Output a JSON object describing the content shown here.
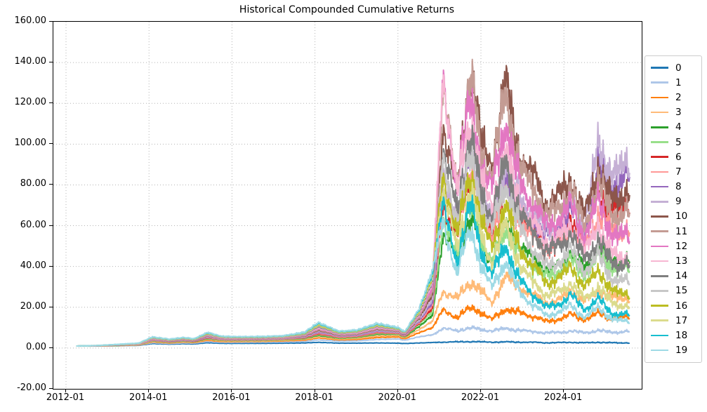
{
  "chart_data": {
    "type": "line",
    "title": "Historical Compounded Cumulative Returns",
    "xlabel": "",
    "ylabel": "",
    "grid": "dotted, both axes",
    "legend_position": "outside right",
    "ylim": [
      -20,
      160
    ],
    "xlim_years": [
      2011.695,
      2025.875
    ],
    "y_tick_labels": [
      "160.00",
      "140.00",
      "120.00",
      "100.00",
      "80.00",
      "60.00",
      "40.00",
      "20.00",
      "0.00",
      "-20.00"
    ],
    "y_tick_values": [
      160,
      140,
      120,
      100,
      80,
      60,
      40,
      20,
      0,
      -20
    ],
    "x_tick_labels": [
      "2012-01",
      "2014-01",
      "2016-01",
      "2018-01",
      "2020-01",
      "2022-01",
      "2024-01"
    ],
    "x_keypoint_dates": [
      "2012-04",
      "2012-10",
      "2013-04",
      "2013-10",
      "2014-02",
      "2014-07",
      "2014-11",
      "2015-02",
      "2015-06",
      "2015-10",
      "2016-04",
      "2016-10",
      "2017-04",
      "2017-10",
      "2018-02",
      "2018-08",
      "2019-01",
      "2019-07",
      "2020-01",
      "2020-03",
      "2020-07",
      "2020-11",
      "2021-02",
      "2021-06",
      "2021-10",
      "2022-01",
      "2022-04",
      "2022-08",
      "2022-12",
      "2023-04",
      "2023-08",
      "2023-12",
      "2024-03",
      "2024-07",
      "2024-11",
      "2025-03",
      "2025-08"
    ],
    "series": [
      {
        "name": "0",
        "color": "#1f77b4",
        "values": [
          1.0,
          1.0,
          1.1,
          1.3,
          2.2,
          1.9,
          2.1,
          2.0,
          2.6,
          2.3,
          2.3,
          2.3,
          2.4,
          2.5,
          2.8,
          2.4,
          2.4,
          2.5,
          2.4,
          2.2,
          2.5,
          2.7,
          2.9,
          3.0,
          3.2,
          3.0,
          2.9,
          3.0,
          2.9,
          2.8,
          2.6,
          2.7,
          2.8,
          2.6,
          2.8,
          2.6,
          2.5
        ]
      },
      {
        "name": "1",
        "color": "#aec7e8",
        "values": [
          1.0,
          1.0,
          1.1,
          1.4,
          2.6,
          2.2,
          2.5,
          2.4,
          3.2,
          2.8,
          2.8,
          2.9,
          3.0,
          3.3,
          4.0,
          3.4,
          3.5,
          4.2,
          4.5,
          3.8,
          5.5,
          6.5,
          9.5,
          8.5,
          10.0,
          9.0,
          8.5,
          9.5,
          8.8,
          8.0,
          7.5,
          7.8,
          8.3,
          7.6,
          8.5,
          7.8,
          8.0
        ]
      },
      {
        "name": "2",
        "color": "#ff7f0e",
        "values": [
          1.0,
          1.0,
          1.2,
          1.5,
          3.0,
          2.5,
          2.9,
          2.7,
          3.8,
          3.2,
          3.2,
          3.3,
          3.5,
          3.9,
          5.0,
          4.0,
          4.2,
          5.2,
          5.5,
          4.5,
          7.5,
          10.0,
          18.5,
          15.0,
          20.0,
          17.5,
          14.0,
          19.0,
          17.5,
          15.5,
          13.0,
          14.5,
          16.5,
          14.0,
          17.0,
          14.5,
          15.0
        ]
      },
      {
        "name": "3",
        "color": "#ffbb78",
        "values": [
          1.0,
          1.0,
          1.2,
          1.6,
          3.2,
          2.7,
          3.1,
          2.9,
          4.2,
          3.5,
          3.4,
          3.5,
          3.8,
          4.3,
          5.5,
          4.4,
          4.7,
          6.0,
          6.2,
          5.0,
          9.0,
          13.0,
          28.0,
          24.0,
          33.0,
          28.0,
          22.0,
          35.0,
          30.0,
          26.0,
          22.0,
          24.0,
          28.0,
          23.0,
          28.0,
          25.0,
          24.0
        ]
      },
      {
        "name": "4",
        "color": "#2ca02c",
        "values": [
          1.0,
          1.1,
          1.3,
          1.7,
          3.5,
          2.9,
          3.4,
          3.1,
          4.6,
          3.8,
          3.7,
          3.8,
          4.1,
          4.7,
          6.2,
          4.8,
          5.2,
          6.8,
          6.8,
          5.4,
          10.5,
          16.0,
          55.0,
          45.0,
          65.0,
          52.0,
          42.0,
          60.0,
          50.0,
          44.0,
          38.0,
          41.0,
          47.0,
          39.0,
          48.0,
          43.0,
          42.0
        ]
      },
      {
        "name": "5",
        "color": "#98df8a",
        "values": [
          1.0,
          1.1,
          1.3,
          1.7,
          3.6,
          3.0,
          3.5,
          3.2,
          4.8,
          3.9,
          3.8,
          3.9,
          4.2,
          4.9,
          6.6,
          5.0,
          5.4,
          7.2,
          7.0,
          5.6,
          11.5,
          18.0,
          60.0,
          48.0,
          70.0,
          54.0,
          42.0,
          58.0,
          47.0,
          40.0,
          35.0,
          38.0,
          43.0,
          36.0,
          45.0,
          40.0,
          38.0
        ]
      },
      {
        "name": "6",
        "color": "#d62728",
        "values": [
          1.0,
          1.1,
          1.4,
          1.8,
          3.8,
          3.1,
          3.7,
          3.3,
          5.0,
          4.1,
          4.0,
          4.1,
          4.4,
          5.1,
          7.0,
          5.3,
          5.7,
          7.6,
          7.3,
          5.8,
          12.0,
          19.5,
          70.0,
          55.0,
          85.0,
          66.0,
          55.0,
          80.0,
          66.0,
          58.0,
          50.0,
          54.0,
          62.0,
          52.0,
          75.0,
          68.0,
          70.0
        ]
      },
      {
        "name": "7",
        "color": "#ff9896",
        "values": [
          1.0,
          1.1,
          1.4,
          1.8,
          3.9,
          3.2,
          3.8,
          3.4,
          5.2,
          4.2,
          4.1,
          4.2,
          4.5,
          5.3,
          7.4,
          5.5,
          5.9,
          7.9,
          7.5,
          6.0,
          12.5,
          21.0,
          75.0,
          58.0,
          90.0,
          68.0,
          55.0,
          78.0,
          63.0,
          54.0,
          48.0,
          51.0,
          58.0,
          49.0,
          65.0,
          58.0,
          57.0
        ]
      },
      {
        "name": "8",
        "color": "#9467bd",
        "values": [
          1.0,
          1.1,
          1.4,
          1.9,
          4.1,
          3.3,
          3.9,
          3.5,
          5.4,
          4.4,
          4.3,
          4.4,
          4.7,
          5.5,
          7.8,
          5.8,
          6.2,
          8.3,
          7.8,
          6.2,
          13.0,
          22.5,
          80.0,
          62.0,
          95.0,
          72.0,
          60.0,
          85.0,
          70.0,
          62.0,
          55.0,
          60.0,
          68.0,
          57.0,
          88.0,
          80.0,
          83.0
        ]
      },
      {
        "name": "9",
        "color": "#c5b0d5",
        "values": [
          1.0,
          1.1,
          1.5,
          1.9,
          4.2,
          3.4,
          4.0,
          3.6,
          5.6,
          4.5,
          4.4,
          4.5,
          4.8,
          5.7,
          8.2,
          6.0,
          6.5,
          8.7,
          8.0,
          6.4,
          13.5,
          24.0,
          85.0,
          65.0,
          100.0,
          76.0,
          63.0,
          90.0,
          74.0,
          65.0,
          58.0,
          63.0,
          72.0,
          60.0,
          100.0,
          85.0,
          90.0
        ]
      },
      {
        "name": "10",
        "color": "#8c564b",
        "values": [
          1.0,
          1.1,
          1.5,
          2.0,
          4.4,
          3.5,
          4.2,
          3.7,
          5.9,
          4.7,
          4.6,
          4.7,
          5.0,
          6.0,
          8.7,
          6.3,
          6.8,
          9.2,
          8.3,
          6.6,
          14.5,
          26.0,
          110.0,
          75.0,
          141.0,
          100.0,
          90.0,
          130.0,
          95.0,
          85.0,
          70.0,
          76.0,
          83.0,
          65.0,
          88.0,
          72.0,
          77.0
        ]
      },
      {
        "name": "11",
        "color": "#c49c94",
        "values": [
          1.0,
          1.1,
          1.5,
          2.0,
          4.5,
          3.6,
          4.3,
          3.8,
          6.1,
          4.8,
          4.7,
          4.8,
          5.1,
          6.2,
          9.1,
          6.5,
          7.0,
          9.5,
          8.5,
          6.8,
          15.0,
          28.0,
          125.0,
          80.0,
          135.0,
          95.0,
          85.0,
          124.0,
          90.0,
          78.0,
          65.0,
          70.0,
          78.0,
          60.0,
          80.0,
          66.0,
          65.0
        ]
      },
      {
        "name": "12",
        "color": "#e377c2",
        "values": [
          1.0,
          1.2,
          1.6,
          2.1,
          4.7,
          3.7,
          4.5,
          3.9,
          6.3,
          5.0,
          4.9,
          5.0,
          5.3,
          6.4,
          9.6,
          6.8,
          7.3,
          9.9,
          8.8,
          7.0,
          15.5,
          30.0,
          130.0,
          78.0,
          125.0,
          88.0,
          78.0,
          110.0,
          82.0,
          70.0,
          60.0,
          64.0,
          70.0,
          55.0,
          72.0,
          56.0,
          54.0
        ]
      },
      {
        "name": "13",
        "color": "#f7b6d2",
        "values": [
          1.0,
          1.2,
          1.6,
          2.1,
          4.8,
          3.8,
          4.6,
          4.0,
          6.5,
          5.1,
          5.0,
          5.1,
          5.4,
          6.6,
          10.0,
          7.0,
          7.5,
          10.2,
          9.0,
          7.2,
          16.0,
          32.0,
          135.0,
          75.0,
          115.0,
          82.0,
          70.0,
          95.0,
          72.0,
          60.0,
          52.0,
          55.0,
          60.0,
          47.0,
          60.0,
          46.0,
          43.0
        ]
      },
      {
        "name": "14",
        "color": "#7f7f7f",
        "values": [
          1.0,
          1.2,
          1.6,
          2.2,
          5.0,
          3.9,
          4.7,
          4.1,
          6.7,
          5.3,
          5.1,
          5.2,
          5.6,
          6.8,
          10.5,
          7.2,
          7.8,
          10.6,
          9.2,
          7.4,
          16.5,
          33.0,
          95.0,
          68.0,
          105.0,
          76.0,
          65.0,
          90.0,
          68.0,
          56.0,
          48.0,
          51.0,
          56.0,
          44.0,
          52.0,
          42.0,
          40.0
        ]
      },
      {
        "name": "15",
        "color": "#c7c7c7",
        "values": [
          1.0,
          1.2,
          1.7,
          2.2,
          5.1,
          4.0,
          4.8,
          4.2,
          6.9,
          5.4,
          5.2,
          5.3,
          5.7,
          7.0,
          11.0,
          7.4,
          8.0,
          10.9,
          9.4,
          7.6,
          17.0,
          34.0,
          90.0,
          62.0,
          95.0,
          70.0,
          58.0,
          80.0,
          60.0,
          48.0,
          40.0,
          43.0,
          48.0,
          38.0,
          45.0,
          34.0,
          32.0
        ]
      },
      {
        "name": "16",
        "color": "#bcbd22",
        "values": [
          1.0,
          1.2,
          1.7,
          2.3,
          5.2,
          4.1,
          4.9,
          4.3,
          7.1,
          5.5,
          5.3,
          5.4,
          5.8,
          7.2,
          11.4,
          7.6,
          8.2,
          11.2,
          9.6,
          7.7,
          17.5,
          35.0,
          85.0,
          55.0,
          88.0,
          62.0,
          50.0,
          70.0,
          50.0,
          40.0,
          32.0,
          35.0,
          40.0,
          30.0,
          38.0,
          28.0,
          26.0
        ]
      },
      {
        "name": "17",
        "color": "#dbdb8d",
        "values": [
          1.0,
          1.2,
          1.7,
          2.3,
          5.3,
          4.2,
          5.0,
          4.4,
          7.3,
          5.6,
          5.4,
          5.5,
          5.9,
          7.4,
          11.8,
          7.8,
          8.4,
          11.5,
          9.8,
          7.8,
          18.0,
          36.0,
          78.0,
          48.0,
          80.0,
          55.0,
          42.0,
          60.0,
          42.0,
          32.0,
          26.0,
          28.0,
          32.0,
          24.0,
          30.0,
          22.0,
          20.0
        ]
      },
      {
        "name": "18",
        "color": "#17becf",
        "values": [
          1.0,
          1.2,
          1.8,
          2.4,
          5.4,
          4.3,
          5.1,
          4.5,
          7.5,
          5.7,
          5.5,
          5.6,
          6.0,
          7.6,
          12.2,
          8.0,
          8.6,
          11.8,
          10.0,
          7.9,
          18.5,
          37.0,
          70.0,
          42.0,
          72.0,
          48.0,
          36.0,
          50.0,
          34.0,
          26.0,
          20.0,
          22.0,
          26.0,
          19.0,
          24.0,
          17.0,
          16.0
        ]
      },
      {
        "name": "19",
        "color": "#9edae5",
        "values": [
          1.0,
          1.2,
          1.8,
          2.4,
          5.5,
          4.4,
          5.2,
          4.6,
          7.7,
          5.8,
          5.6,
          5.7,
          6.1,
          7.8,
          12.6,
          8.2,
          8.8,
          12.1,
          10.2,
          8.0,
          19.0,
          38.0,
          62.0,
          36.0,
          60.0,
          40.0,
          30.0,
          42.0,
          28.0,
          21.0,
          16.0,
          18.0,
          21.0,
          15.0,
          20.0,
          14.0,
          13.0
        ]
      }
    ]
  }
}
